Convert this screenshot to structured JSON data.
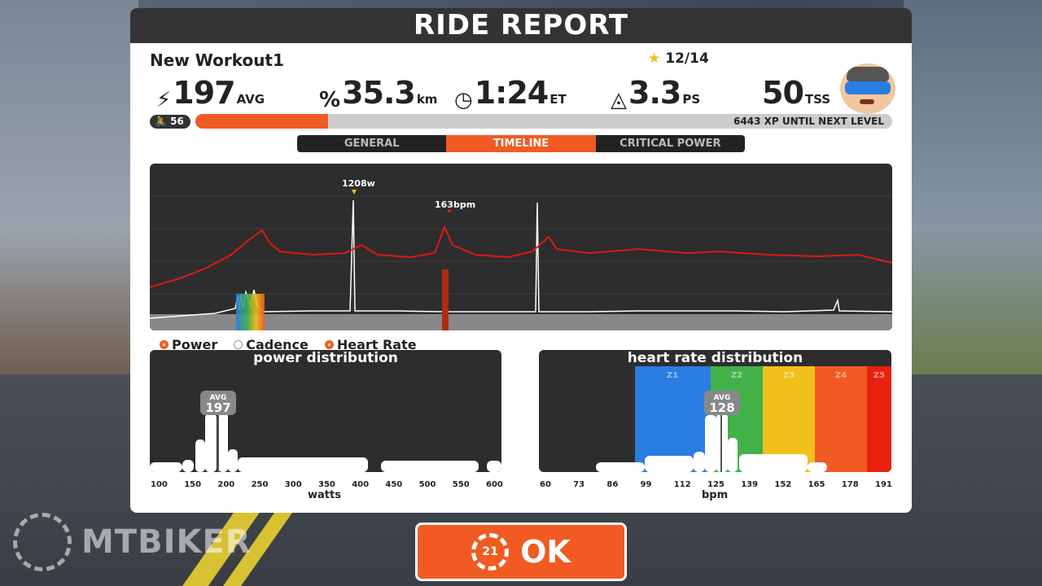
{
  "header": {
    "title": "RIDE REPORT"
  },
  "workout": {
    "name": "New Workout1",
    "stars": "12/14"
  },
  "stats": [
    {
      "icon": "lightning-icon",
      "value": "197",
      "unit": "AVG"
    },
    {
      "icon": "speed-icon",
      "value": "35.3",
      "unit": "km"
    },
    {
      "icon": "clock-icon",
      "value": "1:24",
      "unit": "ET"
    },
    {
      "icon": "pizza-icon",
      "value": "3.3",
      "unit": "PS"
    },
    {
      "icon": "",
      "value": "50",
      "unit": "TSS"
    }
  ],
  "level": {
    "value": "56",
    "xp_text": "6443 XP UNTIL NEXT LEVEL",
    "progress": 0.19
  },
  "tabs": [
    "GENERAL",
    "TIMELINE",
    "CRITICAL POWER"
  ],
  "active_tab": 1,
  "timeline": {
    "max_power_label": "1208w",
    "max_hr_label": "163bpm",
    "legend": [
      {
        "label": "Power",
        "on": true
      },
      {
        "label": "Cadence",
        "on": false
      },
      {
        "label": "Heart Rate",
        "on": true
      }
    ]
  },
  "power_distribution": {
    "title": "power distribution",
    "avg_label": "AVG",
    "avg_value": "197",
    "x_ticks": [
      "100",
      "150",
      "200",
      "250",
      "300",
      "350",
      "400",
      "450",
      "500",
      "550",
      "600"
    ],
    "x_label": "watts"
  },
  "hr_distribution": {
    "title": "heart rate distribution",
    "avg_label": "AVG",
    "avg_value": "128",
    "zones": [
      "Z1",
      "Z2",
      "Z3",
      "Z4",
      "Z5"
    ],
    "x_ticks": [
      "60",
      "73",
      "86",
      "99",
      "112",
      "125",
      "139",
      "152",
      "165",
      "178",
      "191"
    ],
    "x_label": "bpm"
  },
  "ok_button": {
    "label": "OK",
    "badge": "21"
  },
  "watermark": {
    "text": "MTBIKER"
  },
  "colors": {
    "accent": "#f15a22",
    "hr_line": "#e01818",
    "power_line": "#ffffff"
  }
}
